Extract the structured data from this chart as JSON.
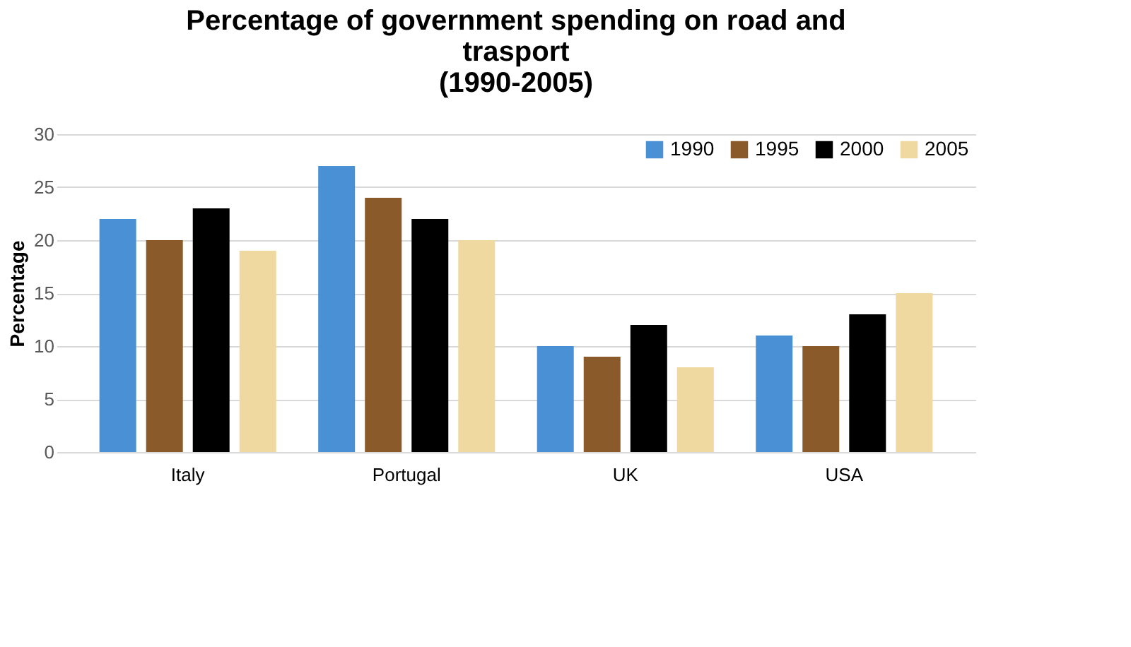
{
  "chart_data": {
    "type": "bar",
    "title": "Percentage of government spending on road and trasport (1990-2005)",
    "ylabel": "Percentage",
    "categories": [
      "Italy",
      "Portugal",
      "UK",
      "USA"
    ],
    "series": [
      {
        "name": "1990",
        "color": "#4a90d4",
        "values": [
          22,
          27,
          10,
          11
        ]
      },
      {
        "name": "1995",
        "color": "#8b5a2b",
        "values": [
          20,
          24,
          9,
          10
        ]
      },
      {
        "name": "2000",
        "color": "#000000",
        "values": [
          23,
          22,
          12,
          13
        ]
      },
      {
        "name": "2005",
        "color": "#f0d9a0",
        "values": [
          19,
          20,
          8,
          15
        ]
      }
    ],
    "ylim": [
      0,
      30
    ],
    "yticks": [
      0,
      5,
      10,
      15,
      20,
      25,
      30
    ],
    "grid": "y",
    "legend": "top right"
  }
}
